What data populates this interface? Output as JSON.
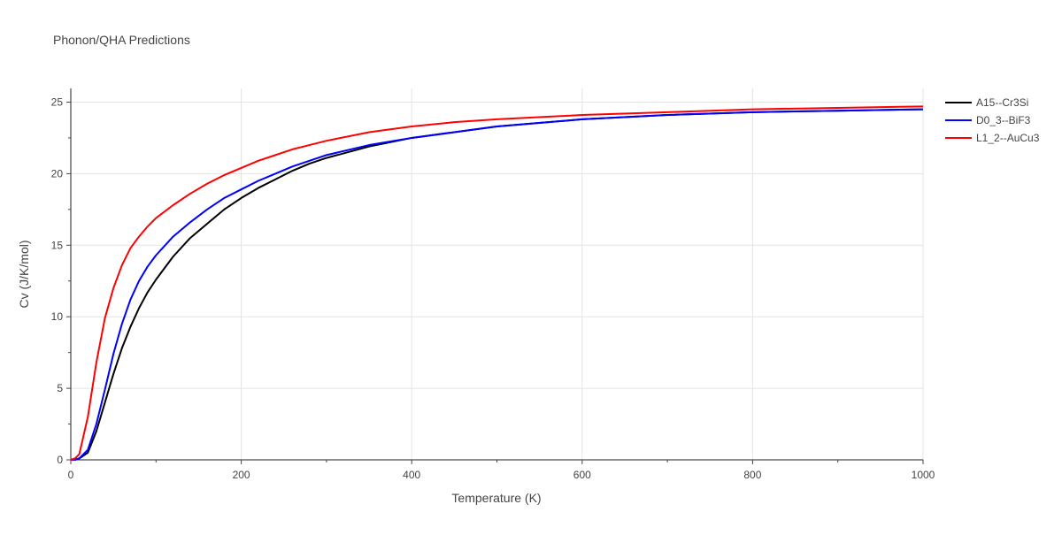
{
  "chart_data": {
    "type": "line",
    "title": "Phonon/QHA Predictions",
    "xlabel": "Temperature (K)",
    "ylabel": "Cv (J/K/mol)",
    "xlim": [
      0,
      1000
    ],
    "ylim": [
      0,
      26
    ],
    "x_ticks": [
      0,
      200,
      400,
      600,
      800,
      1000
    ],
    "y_ticks": [
      0,
      5,
      10,
      15,
      20,
      25
    ],
    "grid": true,
    "legend_position": "top-right",
    "series": [
      {
        "name": "A15--Cr3Si",
        "color": "#000000",
        "x": [
          0,
          5,
          10,
          20,
          30,
          40,
          50,
          60,
          70,
          80,
          90,
          100,
          120,
          140,
          160,
          180,
          200,
          220,
          240,
          260,
          280,
          300,
          350,
          400,
          450,
          500,
          600,
          700,
          800,
          900,
          1000
        ],
        "y": [
          0,
          0,
          0.1,
          0.5,
          2.0,
          4.0,
          6.0,
          7.8,
          9.3,
          10.6,
          11.7,
          12.6,
          14.2,
          15.5,
          16.5,
          17.5,
          18.3,
          19.0,
          19.6,
          20.2,
          20.7,
          21.1,
          21.9,
          22.5,
          22.9,
          23.3,
          23.8,
          24.1,
          24.3,
          24.4,
          24.5
        ]
      },
      {
        "name": "D0_3--BiF3",
        "color": "#0000ff",
        "x": [
          0,
          5,
          10,
          20,
          30,
          40,
          50,
          60,
          70,
          80,
          90,
          100,
          120,
          140,
          160,
          180,
          200,
          220,
          240,
          260,
          280,
          300,
          350,
          400,
          450,
          500,
          600,
          700,
          800,
          900,
          1000
        ],
        "y": [
          0,
          0,
          0.1,
          0.7,
          2.5,
          4.9,
          7.4,
          9.5,
          11.2,
          12.5,
          13.5,
          14.3,
          15.6,
          16.6,
          17.5,
          18.3,
          18.9,
          19.5,
          20.0,
          20.5,
          20.9,
          21.3,
          22.0,
          22.5,
          22.9,
          23.3,
          23.8,
          24.1,
          24.3,
          24.4,
          24.5
        ]
      },
      {
        "name": "L1_2--AuCu3",
        "color": "#ff0000",
        "x": [
          0,
          5,
          10,
          20,
          30,
          40,
          50,
          60,
          70,
          80,
          90,
          100,
          120,
          140,
          160,
          180,
          200,
          220,
          240,
          260,
          280,
          300,
          350,
          400,
          450,
          500,
          600,
          700,
          800,
          900,
          1000
        ],
        "y": [
          0,
          0.1,
          0.4,
          3.0,
          6.8,
          9.9,
          12.0,
          13.6,
          14.8,
          15.6,
          16.3,
          16.9,
          17.8,
          18.6,
          19.3,
          19.9,
          20.4,
          20.9,
          21.3,
          21.7,
          22.0,
          22.3,
          22.9,
          23.3,
          23.6,
          23.8,
          24.1,
          24.3,
          24.5,
          24.6,
          24.7
        ]
      }
    ]
  }
}
